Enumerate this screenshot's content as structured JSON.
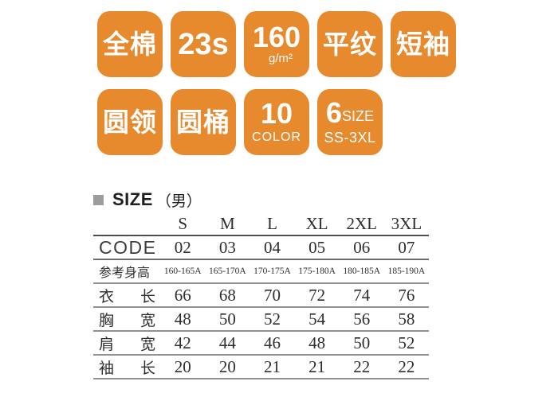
{
  "colors": {
    "badge_orange": "#e7892d",
    "badge_text": "#ffffff",
    "bullet_gray": "#9c9c9c",
    "table_text": "#2e2e2e"
  },
  "badges": {
    "cotton": "全棉",
    "yarn_count": "23s",
    "weight": {
      "big": "160",
      "unit": "g/m²"
    },
    "weave": "平纹",
    "sleeve": "短袖",
    "collar": "圆领",
    "body": "圆桶",
    "color_count": {
      "big": "10",
      "small": "COLOR"
    },
    "size_range": {
      "big": "6",
      "mid": "SIZE",
      "small": "SS-3XL"
    }
  },
  "size_section": {
    "title": "SIZE",
    "gender": "（男）",
    "columns": [
      "S",
      "M",
      "L",
      "XL",
      "2XL",
      "3XL"
    ],
    "rows": [
      {
        "label": "CODE",
        "values": [
          "02",
          "03",
          "04",
          "05",
          "06",
          "07"
        ]
      },
      {
        "label": "参考身高",
        "values": [
          "160-165A",
          "165-170A",
          "170-175A",
          "175-180A",
          "180-185A",
          "185-190A"
        ]
      },
      {
        "label": "衣　长",
        "values": [
          "66",
          "68",
          "70",
          "72",
          "74",
          "76"
        ]
      },
      {
        "label": "胸　宽",
        "values": [
          "48",
          "50",
          "52",
          "54",
          "56",
          "58"
        ]
      },
      {
        "label": "肩　宽",
        "values": [
          "42",
          "44",
          "46",
          "48",
          "50",
          "52"
        ]
      },
      {
        "label": "袖　长",
        "values": [
          "20",
          "20",
          "21",
          "21",
          "22",
          "22"
        ]
      }
    ]
  }
}
